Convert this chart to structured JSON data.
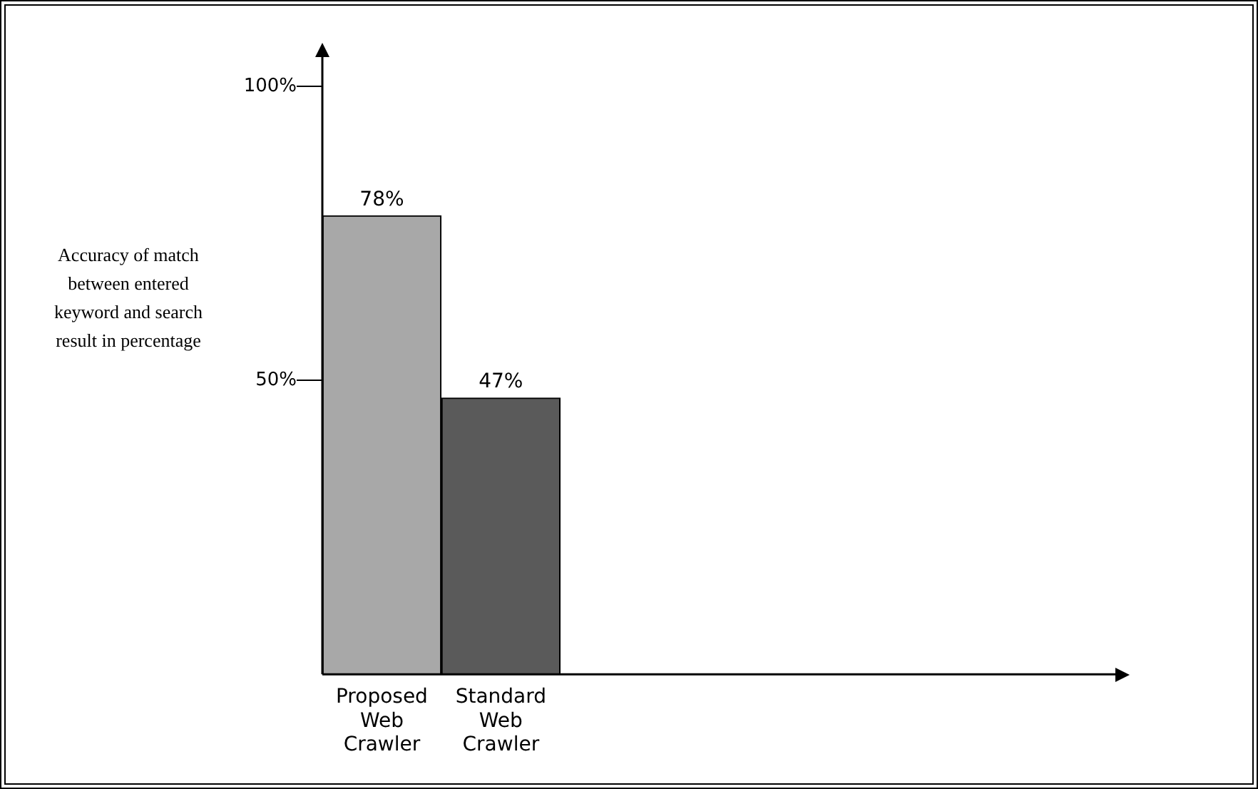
{
  "chart_data": {
    "type": "bar",
    "ylabel": "Accuracy of match between entered keyword and search result in percentage",
    "categories": [
      "Proposed Web Crawler",
      "Standard Web Crawler"
    ],
    "values": [
      78,
      47
    ],
    "colors": [
      "#a8a8a8",
      "#5a5a5a"
    ],
    "value_labels": [
      "78%",
      "47%"
    ],
    "ylim": [
      0,
      105
    ],
    "yticks": [
      {
        "value": 50,
        "label": "50%"
      },
      {
        "value": 100,
        "label": "100%"
      }
    ],
    "grid": false,
    "legend": false
  }
}
